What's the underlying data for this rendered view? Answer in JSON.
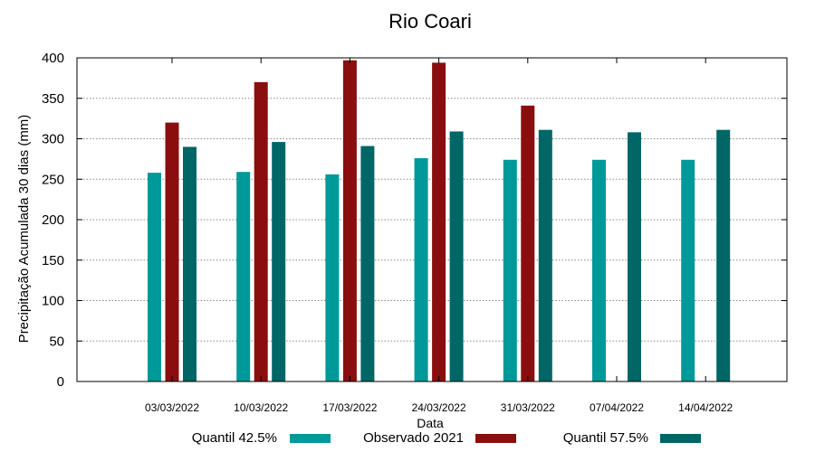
{
  "chart_data": {
    "type": "bar",
    "title": "Rio Coari",
    "xlabel": "Data",
    "ylabel": "Precipitação Acumulada 30 dias (mm)",
    "ylim": [
      0,
      400
    ],
    "yticks": [
      0,
      50,
      100,
      150,
      200,
      250,
      300,
      350,
      400
    ],
    "grid": true,
    "legend_position": "bottom",
    "categories": [
      "03/03/2022",
      "10/03/2022",
      "17/03/2022",
      "24/03/2022",
      "31/03/2022",
      "07/04/2022",
      "14/04/2022"
    ],
    "series": [
      {
        "name": "Quantil 42.5%",
        "color": "#009999",
        "values": [
          258,
          259,
          256,
          276,
          274,
          274,
          274
        ]
      },
      {
        "name": "Observado 2021",
        "color": "#8b0e0e",
        "values": [
          320,
          370,
          397,
          394,
          341,
          null,
          null
        ]
      },
      {
        "name": "Quantil 57.5%",
        "color": "#006666",
        "values": [
          290,
          296,
          291,
          309,
          311,
          308,
          311
        ]
      }
    ]
  }
}
